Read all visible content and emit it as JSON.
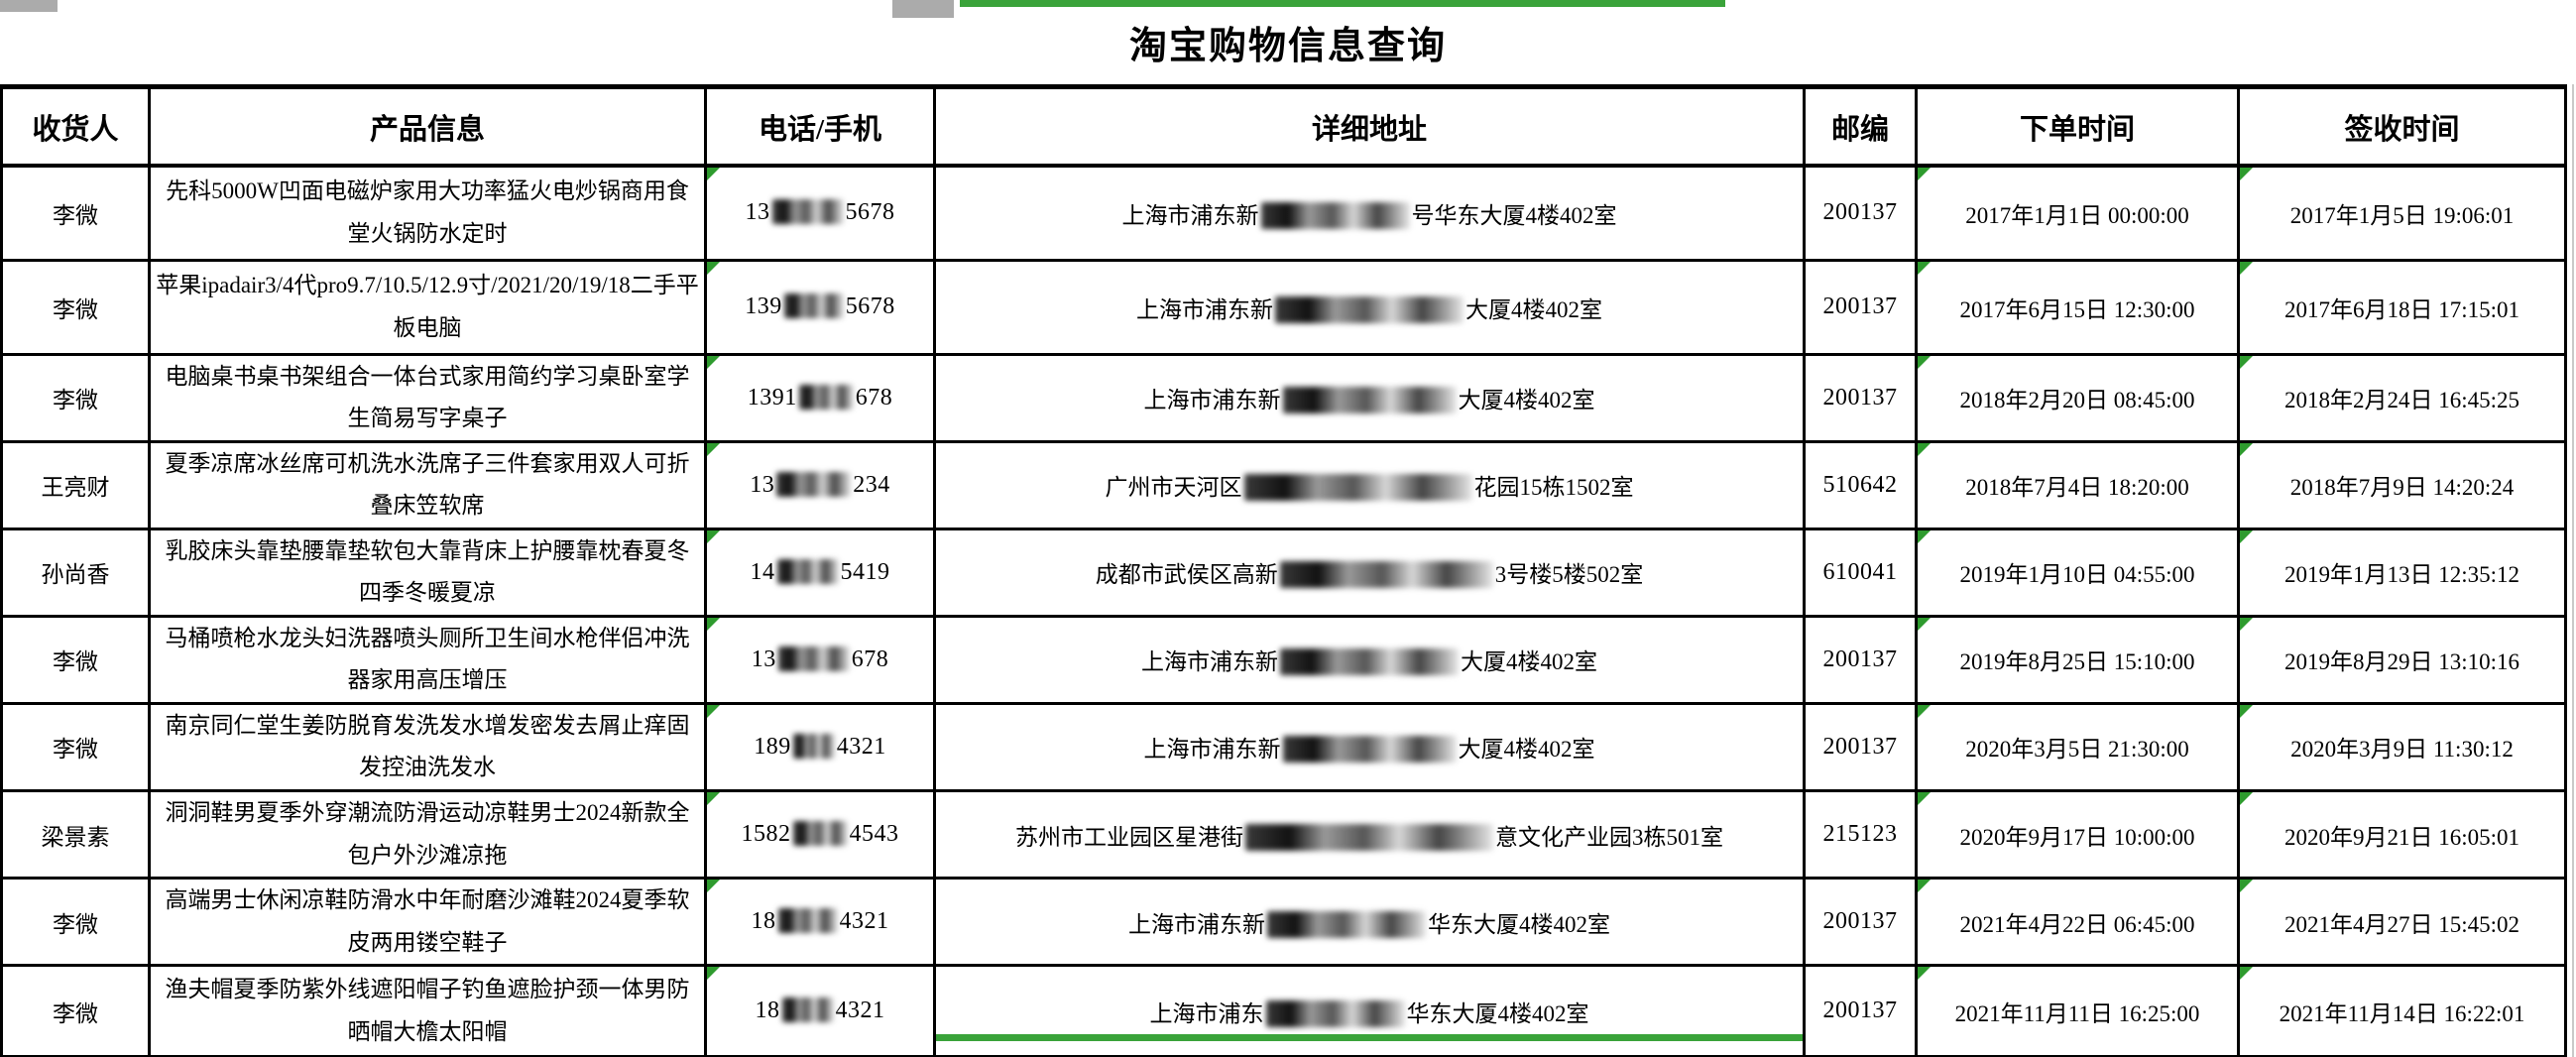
{
  "title": "淘宝购物信息查询",
  "columns": [
    "收货人",
    "产品信息",
    "电话/手机",
    "详细地址",
    "邮编",
    "下单时间",
    "签收时间"
  ],
  "accent": {
    "flag_triangle_green": "#2E9B2E",
    "selection_border_green": "#3AA33A",
    "grid_black": "#000000"
  },
  "rows": [
    {
      "recipient": "李微",
      "product": "先科5000W凹面电磁炉家用大功率猛火电炒锅商用食堂火锅防水定时",
      "phone": {
        "prefix": "13",
        "suffix": "5678",
        "blur_w": 72
      },
      "address": {
        "prefix": "上海市浦东新",
        "suffix": "号华东大厦4楼402室",
        "blur_w": 150
      },
      "zip": "200137",
      "order_time": "2017年1月1日 00:00:00",
      "sign_time": "2017年1月5日 19:06:01"
    },
    {
      "recipient": "李微",
      "product": "苹果ipadair3/4代pro9.7/10.5/12.9寸/2021/20/19/18二手平板电脑",
      "phone": {
        "prefix": "139",
        "suffix": "5678",
        "blur_w": 60
      },
      "address": {
        "prefix": "上海市浦东新",
        "suffix": "大厦4楼402室",
        "blur_w": 190
      },
      "zip": "200137",
      "order_time": "2017年6月15日 12:30:00",
      "sign_time": "2017年6月18日 17:15:01"
    },
    {
      "recipient": "李微",
      "product": "电脑桌书桌书架组合一体台式家用简约学习桌卧室学生简易写字桌子",
      "phone": {
        "prefix": "1391",
        "suffix": "678",
        "blur_w": 55
      },
      "address": {
        "prefix": "上海市浦东新",
        "suffix": "大厦4楼402室",
        "blur_w": 175
      },
      "zip": "200137",
      "order_time": "2018年2月20日 08:45:00",
      "sign_time": "2018年2月24日 16:45:25"
    },
    {
      "recipient": "王亮财",
      "product": "夏季凉席冰丝席可机洗水洗席子三件套家用双人可折叠床笠软席",
      "phone": {
        "prefix": "13",
        "suffix": "234",
        "blur_w": 75
      },
      "address": {
        "prefix": "广州市天河区",
        "suffix": "花园15栋1502室",
        "blur_w": 230
      },
      "zip": "510642",
      "order_time": "2018年7月4日 18:20:00",
      "sign_time": "2018年7月9日 14:20:24"
    },
    {
      "recipient": "孙尚香",
      "product": "乳胶床头靠垫腰靠垫软包大靠背床上护腰靠枕春夏冬四季冬暖夏凉",
      "phone": {
        "prefix": "14",
        "suffix": "5419",
        "blur_w": 62
      },
      "address": {
        "prefix": "成都市武侯区高新",
        "suffix": "3号楼5楼502室",
        "blur_w": 215
      },
      "zip": "610041",
      "order_time": "2019年1月10日 04:55:00",
      "sign_time": "2019年1月13日 12:35:12"
    },
    {
      "recipient": "李微",
      "product": "马桶喷枪水龙头妇洗器喷头厕所卫生间水枪伴侣冲洗器家用高压增压",
      "phone": {
        "prefix": "13",
        "suffix": "678",
        "blur_w": 72
      },
      "address": {
        "prefix": "上海市浦东新",
        "suffix": "大厦4楼402室",
        "blur_w": 180
      },
      "zip": "200137",
      "order_time": "2019年8月25日 15:10:00",
      "sign_time": "2019年8月29日 13:10:16"
    },
    {
      "recipient": "李微",
      "product": "南京同仁堂生姜防脱育发洗发水增发密发去屑止痒固发控油洗发水",
      "phone": {
        "prefix": "189",
        "suffix": "4321",
        "blur_w": 42
      },
      "address": {
        "prefix": "上海市浦东新",
        "suffix": "大厦4楼402室",
        "blur_w": 175
      },
      "zip": "200137",
      "order_time": "2020年3月5日 21:30:00",
      "sign_time": "2020年3月9日 11:30:12"
    },
    {
      "recipient": "梁景素",
      "product": "洞洞鞋男夏季外穿潮流防滑运动凉鞋男士2024新款全包户外沙滩凉拖",
      "phone": {
        "prefix": "1582",
        "suffix": "4543",
        "blur_w": 55
      },
      "address": {
        "prefix": "苏州市工业园区星港街",
        "suffix": "意文化产业园3栋501室",
        "blur_w": 250
      },
      "zip": "215123",
      "order_time": "2020年9月17日 10:00:00",
      "sign_time": "2020年9月21日 16:05:01"
    },
    {
      "recipient": "李微",
      "product": "高端男士休闲凉鞋防滑水中年耐磨沙滩鞋2024夏季软皮两用镂空鞋子",
      "phone": {
        "prefix": "18",
        "suffix": "4321",
        "blur_w": 60
      },
      "address": {
        "prefix": "上海市浦东新",
        "suffix": "华东大厦4楼402室",
        "blur_w": 160
      },
      "zip": "200137",
      "order_time": "2021年4月22日 06:45:00",
      "sign_time": "2021年4月27日 15:45:02"
    },
    {
      "recipient": "李微",
      "product": "渔夫帽夏季防紫外线遮阳帽子钓鱼遮脸护颈一体男防晒帽大檐太阳帽",
      "phone": {
        "prefix": "18",
        "suffix": "4321",
        "blur_w": 52
      },
      "address": {
        "prefix": "上海市浦东",
        "suffix": "华东大厦4楼402室",
        "blur_w": 140
      },
      "zip": "200137",
      "order_time": "2021年11月11日 16:25:00",
      "sign_time": "2021年11月14日 16:22:01"
    }
  ]
}
